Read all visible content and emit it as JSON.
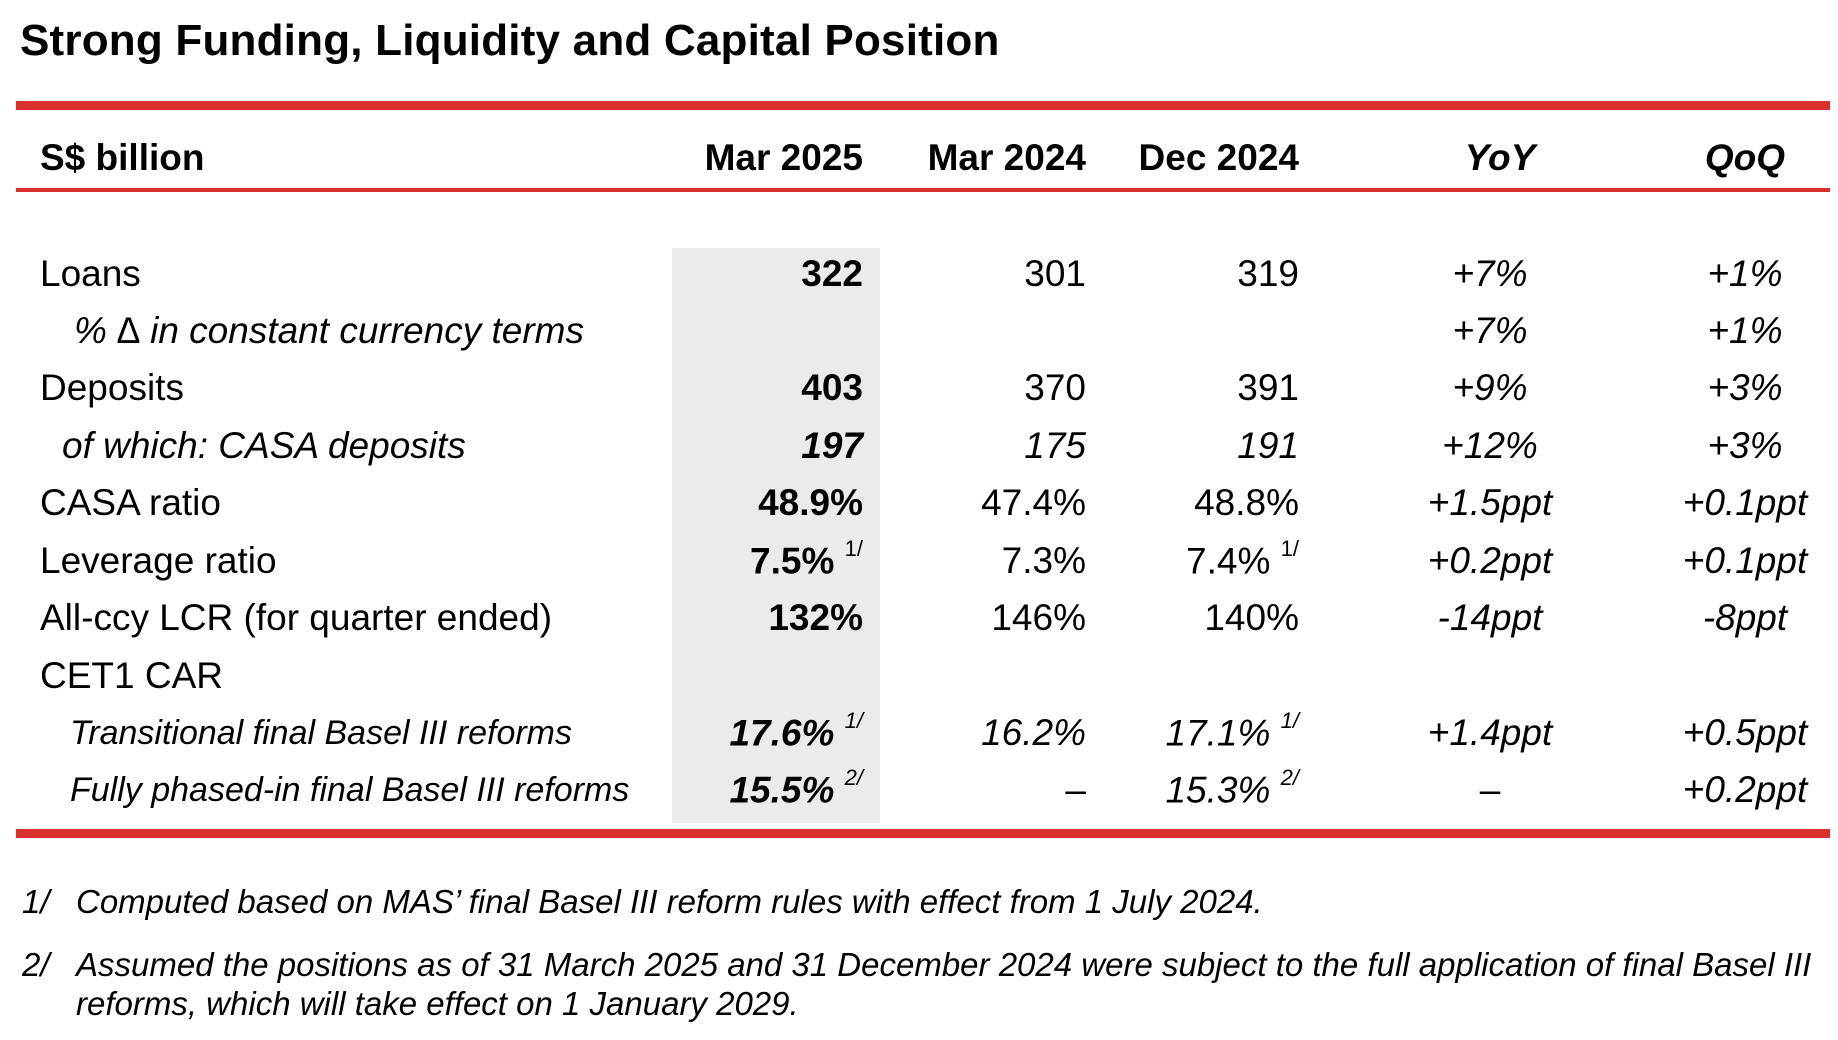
{
  "title": "Strong Funding, Liquidity and Capital Position",
  "header": {
    "label": "S$ billion",
    "col1": "Mar 2025",
    "col2": "Mar 2024",
    "col3": "Dec 2024",
    "col4": "YoY",
    "col5": "QoQ"
  },
  "rows": [
    {
      "label": "Loans",
      "mar2025": "322",
      "mar2024": "301",
      "dec2024": "319",
      "yoy": "+7%",
      "qoq": "+1%"
    },
    {
      "label": "% ∆ in constant currency terms",
      "mar2025": "",
      "mar2024": "",
      "dec2024": "",
      "yoy": "+7%",
      "qoq": "+1%"
    },
    {
      "label": "Deposits",
      "mar2025": "403",
      "mar2024": "370",
      "dec2024": "391",
      "yoy": "+9%",
      "qoq": "+3%"
    },
    {
      "label": "of which: CASA deposits",
      "mar2025": "197",
      "mar2024": "175",
      "dec2024": "191",
      "yoy": "+12%",
      "qoq": "+3%"
    },
    {
      "label": "CASA ratio",
      "mar2025": "48.9%",
      "mar2024": "47.4%",
      "dec2024": "48.8%",
      "yoy": "+1.5ppt",
      "qoq": "+0.1ppt"
    },
    {
      "label": "Leverage ratio",
      "mar2025": "7.5%",
      "mar2025_note": "1/",
      "mar2024": "7.3%",
      "dec2024": "7.4%",
      "dec2024_note": "1/",
      "yoy": "+0.2ppt",
      "qoq": "+0.1ppt"
    },
    {
      "label": "All-ccy LCR (for quarter ended)",
      "mar2025": "132%",
      "mar2024": "146%",
      "dec2024": "140%",
      "yoy": "-14ppt",
      "qoq": "-8ppt"
    },
    {
      "label": "CET1 CAR",
      "mar2025": "",
      "mar2024": "",
      "dec2024": "",
      "yoy": "",
      "qoq": ""
    },
    {
      "label": "Transitional final Basel III reforms",
      "mar2025": "17.6%",
      "mar2025_note": "1/",
      "mar2024": "16.2%",
      "dec2024": "17.1%",
      "dec2024_note": "1/",
      "yoy": "+1.4ppt",
      "qoq": "+0.5ppt"
    },
    {
      "label": "Fully phased-in final Basel III reforms",
      "mar2025": "15.5%",
      "mar2025_note": "2/",
      "mar2024": "–",
      "dec2024": "15.3%",
      "dec2024_note": "2/",
      "yoy": "–",
      "qoq": "+0.2ppt"
    }
  ],
  "footnotes": [
    {
      "num": "1/",
      "text": "Computed based on MAS’ final Basel III reform rules with effect from 1 July 2024."
    },
    {
      "num": "2/",
      "text": "Assumed the positions as of 31 March 2025 and 31 December 2024 were subject to the full application of final Basel III reforms, which will take effect on 1 January 2029."
    }
  ],
  "colors": {
    "accent": "#d9302b",
    "highlight": "#ebebeb"
  }
}
